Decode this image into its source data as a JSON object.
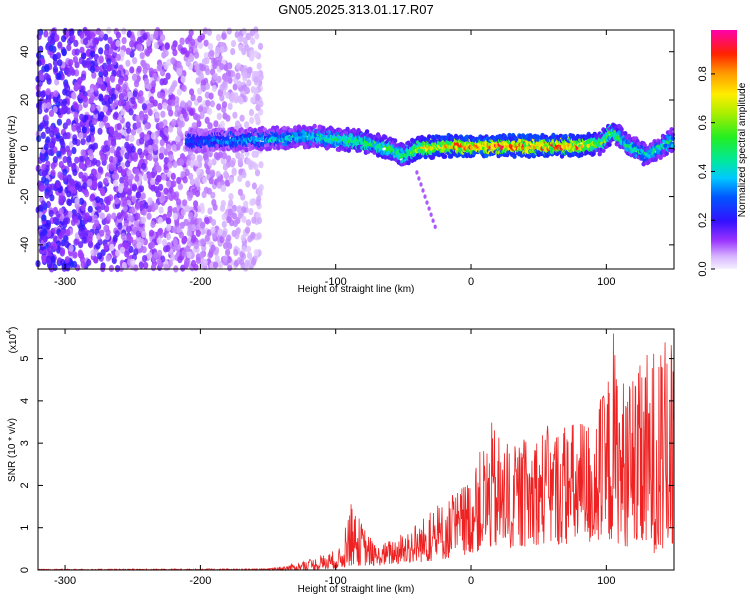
{
  "title": "GN05.2025.313.01.17.R07",
  "chart_data": [
    {
      "type": "heatmap",
      "name": "spectrogram",
      "xlabel": "Height of straight line (km)",
      "ylabel": "Frequency (Hz)",
      "xlim": [
        -320,
        150
      ],
      "ylim": [
        -50,
        49
      ],
      "xticks": [
        -300,
        -200,
        -100,
        0,
        100
      ],
      "xtick_labels": [
        "-300",
        "-200",
        "-100",
        "0",
        "100"
      ],
      "yticks": [
        -40,
        -20,
        0,
        20,
        40
      ],
      "ytick_labels": [
        "-40",
        "-20",
        "0",
        "20",
        "40"
      ],
      "colorbar": {
        "label": "Normalized spectral amplitude",
        "range": [
          0,
          0.98
        ],
        "ticks": [
          0.0,
          0.2,
          0.4,
          0.6,
          0.8
        ],
        "tick_labels": [
          "0.0",
          "0.2",
          "0.4",
          "0.6",
          "0.8"
        ]
      },
      "noise_region_km": [
        -320,
        -155
      ],
      "signal_band": {
        "x": [
          -210,
          -150,
          -120,
          -100,
          -80,
          -60,
          -50,
          -40,
          -20,
          0,
          20,
          40,
          60,
          80,
          95,
          105,
          115,
          130,
          150
        ],
        "center_hz": [
          3,
          4,
          5,
          4,
          3,
          0,
          -3,
          0,
          1,
          1,
          1,
          1,
          1,
          1,
          2,
          7,
          2,
          -3,
          4
        ],
        "peak_amplitude": [
          0.3,
          0.4,
          0.45,
          0.5,
          0.55,
          0.55,
          0.5,
          0.7,
          0.8,
          0.9,
          0.9,
          0.9,
          0.88,
          0.85,
          0.6,
          0.55,
          0.5,
          0.45,
          0.5
        ]
      }
    },
    {
      "type": "line",
      "name": "snr",
      "xlabel": "Height of straight line (km)",
      "ylabel": "SNR (10 * v/v)",
      "scale_label": "(x10",
      "scale_exponent": "4",
      "xlim": [
        -320,
        150
      ],
      "ylim": [
        0,
        5.7
      ],
      "xticks": [
        -300,
        -200,
        -100,
        0,
        100
      ],
      "xtick_labels": [
        "-300",
        "-200",
        "-100",
        "0",
        "100"
      ],
      "yticks": [
        0,
        1,
        2,
        3,
        4,
        5
      ],
      "ytick_labels": [
        "0",
        "1",
        "2",
        "3",
        "4",
        "5"
      ],
      "color": "#ee2222",
      "envelope_x": [
        -320,
        -150,
        -130,
        -110,
        -95,
        -90,
        -70,
        -50,
        -30,
        -10,
        0,
        15,
        30,
        50,
        70,
        90,
        100,
        105,
        110,
        120,
        130,
        140,
        150
      ],
      "envelope_y": [
        0.02,
        0.03,
        0.15,
        0.35,
        0.55,
        1.65,
        0.55,
        0.9,
        1.4,
        1.9,
        2.3,
        3.5,
        2.9,
        3.4,
        3.5,
        3.7,
        4.4,
        5.8,
        4.7,
        4.5,
        5.2,
        5.5,
        5.4
      ],
      "floor_y": [
        0,
        0,
        0,
        0,
        0.05,
        0.1,
        0.1,
        0.15,
        0.2,
        0.3,
        0.4,
        0.5,
        0.5,
        0.6,
        0.6,
        0.6,
        0.6,
        0.7,
        0.6,
        0.5,
        0.4,
        0.4,
        0.4
      ]
    }
  ]
}
